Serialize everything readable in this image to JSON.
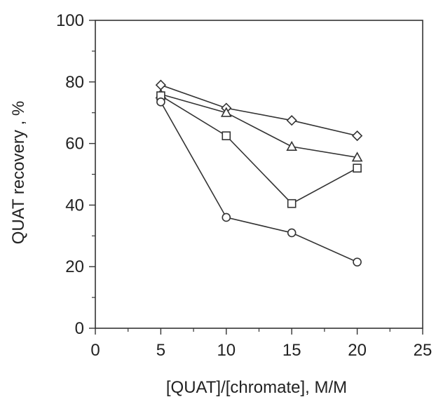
{
  "chart_data": {
    "type": "line",
    "xlabel": "[QUAT]/[chromate], M/M",
    "ylabel": "QUAT recovery , %",
    "xlim": [
      0,
      25
    ],
    "ylim": [
      0,
      100
    ],
    "x_ticks": [
      0,
      5,
      10,
      15,
      20,
      25
    ],
    "y_ticks": [
      0,
      20,
      40,
      60,
      80,
      100
    ],
    "x_minor_step": 2.5,
    "y_minor_step": 10,
    "grid": false,
    "legend": false,
    "line_color": "#333333",
    "series": [
      {
        "marker": "diamond",
        "x": [
          5,
          10,
          15,
          20
        ],
        "y": [
          79,
          71.5,
          67.5,
          62.5
        ]
      },
      {
        "marker": "triangle",
        "x": [
          5,
          10,
          15,
          20
        ],
        "y": [
          76,
          70,
          59,
          55.5
        ]
      },
      {
        "marker": "square",
        "x": [
          5,
          10,
          15,
          20
        ],
        "y": [
          75.5,
          62.5,
          40.5,
          52
        ]
      },
      {
        "marker": "circle",
        "x": [
          5,
          10,
          15,
          20
        ],
        "y": [
          73.5,
          36,
          31,
          21.5
        ]
      }
    ]
  }
}
